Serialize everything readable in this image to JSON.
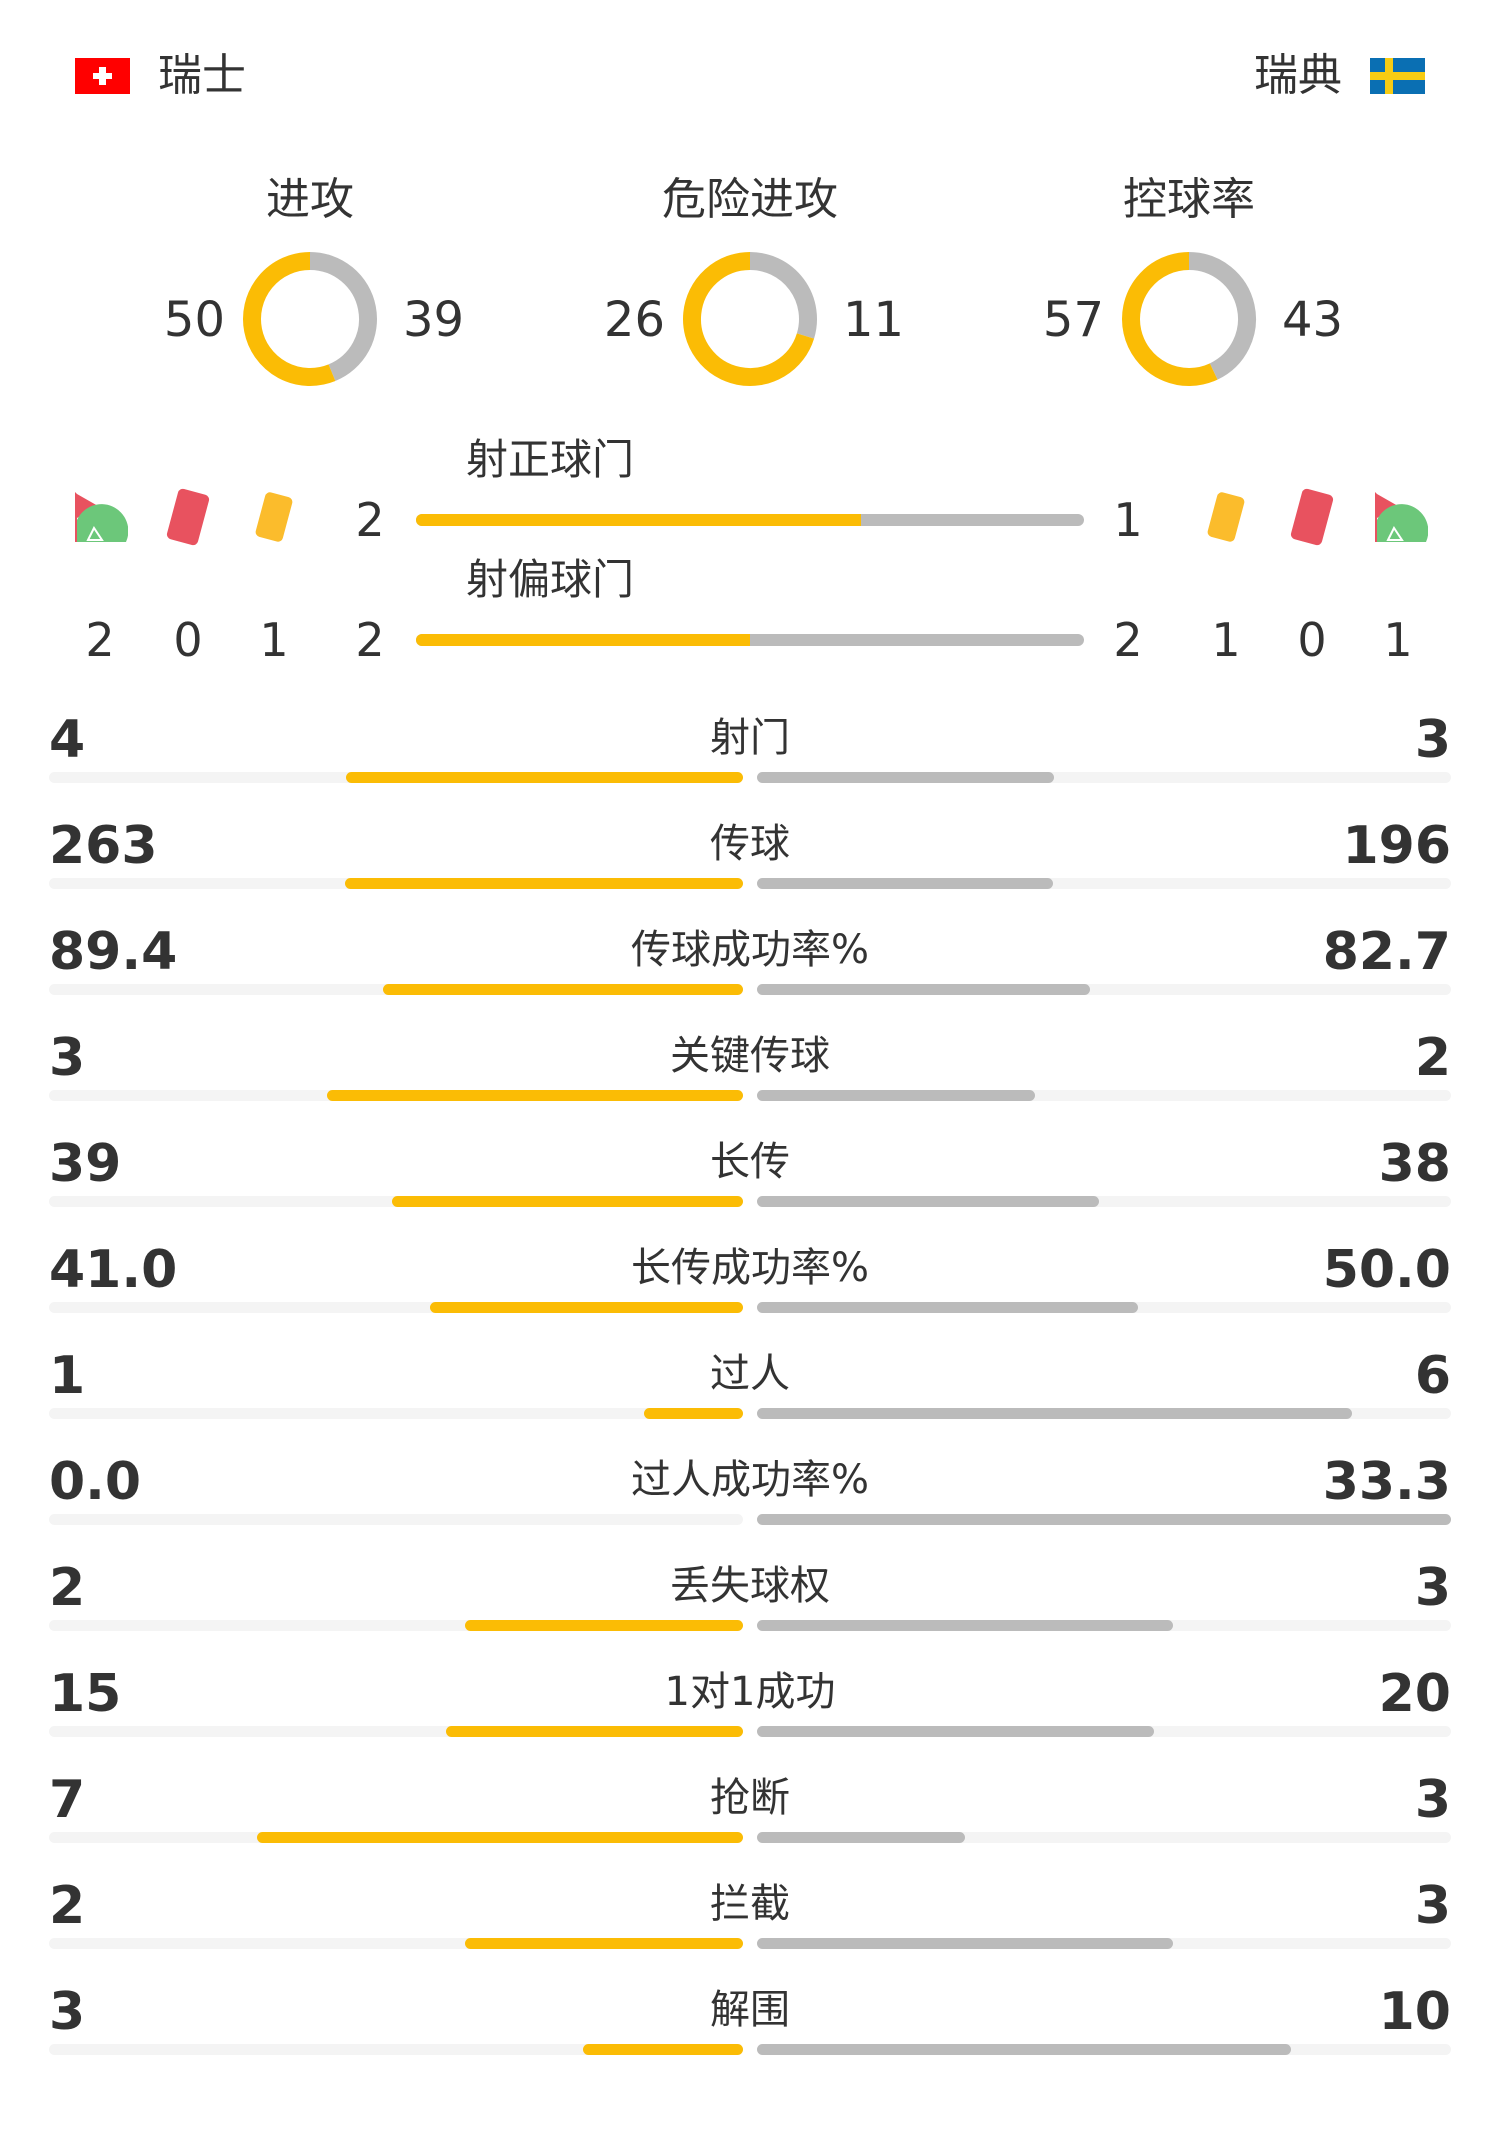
{
  "home": {
    "name": "瑞士",
    "flag": "switzerland-flag"
  },
  "away": {
    "name": "瑞典",
    "flag": "sweden-flag"
  },
  "colors": {
    "home": "#fbbc05",
    "away": "#bbbbbb",
    "track": "#f4f4f4",
    "red_card": "#e8525f",
    "yellow_card": "#fbbc2c",
    "corner_flag": "#e8525f",
    "corner_arc": "#6cc77a"
  },
  "donuts": [
    {
      "label": "进攻",
      "home": 50,
      "away": 39
    },
    {
      "label": "危险进攻",
      "home": 26,
      "away": 11
    },
    {
      "label": "控球率",
      "home": 57,
      "away": 43
    }
  ],
  "shots_on_target": {
    "label": "射正球门",
    "home": 2,
    "away": 1
  },
  "shots_off_target": {
    "label": "射偏球门",
    "home": 2,
    "away": 2
  },
  "events": {
    "icons_home": [
      "corner-flag-icon",
      "red-card-icon",
      "yellow-card-icon"
    ],
    "icons_away": [
      "yellow-card-icon",
      "red-card-icon",
      "corner-flag-icon"
    ],
    "home": {
      "corners": 2,
      "red_cards": 0,
      "yellow_cards": 1
    },
    "away": {
      "yellow_cards": 1,
      "red_cards": 0,
      "corners": 1
    }
  },
  "stats": [
    {
      "label": "射门",
      "home": "4",
      "away": "3"
    },
    {
      "label": "传球",
      "home": "263",
      "away": "196"
    },
    {
      "label": "传球成功率%",
      "home": "89.4",
      "away": "82.7"
    },
    {
      "label": "关键传球",
      "home": "3",
      "away": "2"
    },
    {
      "label": "长传",
      "home": "39",
      "away": "38"
    },
    {
      "label": "长传成功率%",
      "home": "41.0",
      "away": "50.0"
    },
    {
      "label": "过人",
      "home": "1",
      "away": "6"
    },
    {
      "label": "过人成功率%",
      "home": "0.0",
      "away": "33.3"
    },
    {
      "label": "丢失球权",
      "home": "2",
      "away": "3"
    },
    {
      "label": "1对1成功",
      "home": "15",
      "away": "20"
    },
    {
      "label": "抢断",
      "home": "7",
      "away": "3"
    },
    {
      "label": "拦截",
      "home": "2",
      "away": "3"
    },
    {
      "label": "解围",
      "home": "3",
      "away": "10"
    }
  ]
}
